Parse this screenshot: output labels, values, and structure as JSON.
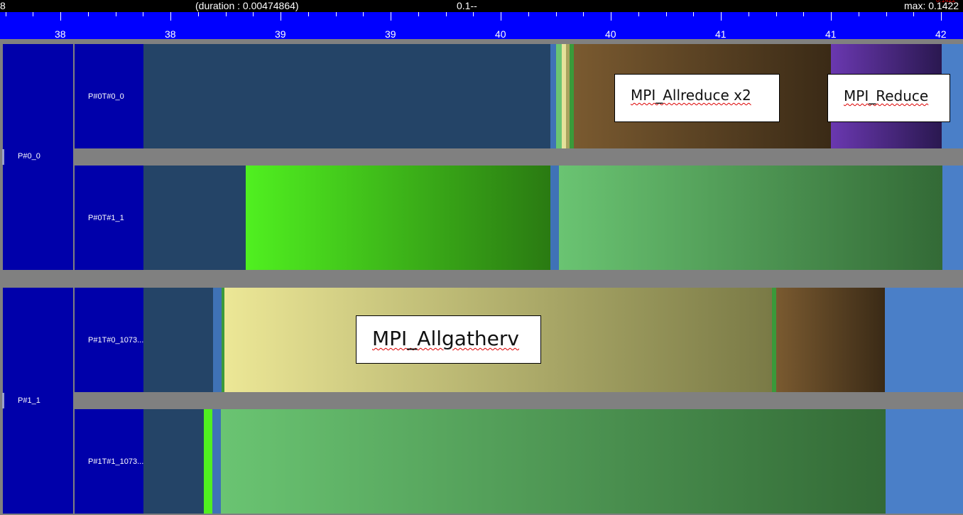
{
  "header": {
    "left_marker": "8",
    "duration_label": "(duration : 0.00474864)",
    "center_label": "0.1--",
    "max_label": "max: 0.1422",
    "max_overflow": "0.1422"
  },
  "ruler": {
    "labels": [
      "38",
      "38",
      "39",
      "39",
      "40",
      "40",
      "41",
      "41",
      "42"
    ]
  },
  "processes": [
    {
      "label": "P#0_0"
    },
    {
      "label": "P#1_1"
    }
  ],
  "threads": [
    {
      "label": "P#0T#0_0"
    },
    {
      "label": "P#0T#1_1"
    },
    {
      "label": "P#1T#0_1073..."
    },
    {
      "label": "P#1T#1_1073..."
    }
  ],
  "callouts": {
    "allreduce": "MPI_Allreduce x2",
    "reduce": "MPI_Reduce",
    "allgatherv": "MPI_Allgatherv"
  },
  "colors": {
    "ruler": "#0000ff",
    "label_column": "#0000aa",
    "idle": "#254468",
    "allreduce": "#7a5a30",
    "reduce": "#6a38b0",
    "compute_green": "#50f020",
    "light_green": "#6ac472",
    "allgatherv": "#ece796",
    "tail_blue": "#4a7fc8"
  }
}
